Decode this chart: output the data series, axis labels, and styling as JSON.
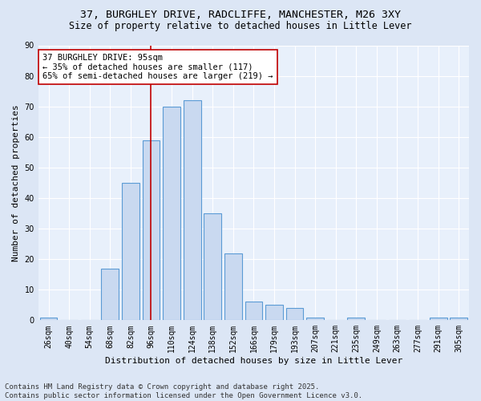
{
  "title1": "37, BURGHLEY DRIVE, RADCLIFFE, MANCHESTER, M26 3XY",
  "title2": "Size of property relative to detached houses in Little Lever",
  "xlabel": "Distribution of detached houses by size in Little Lever",
  "ylabel": "Number of detached properties",
  "bar_labels": [
    "26sqm",
    "40sqm",
    "54sqm",
    "68sqm",
    "82sqm",
    "96sqm",
    "110sqm",
    "124sqm",
    "138sqm",
    "152sqm",
    "166sqm",
    "179sqm",
    "193sqm",
    "207sqm",
    "221sqm",
    "235sqm",
    "249sqm",
    "263sqm",
    "277sqm",
    "291sqm",
    "305sqm"
  ],
  "bar_values": [
    1,
    0,
    0,
    17,
    45,
    59,
    70,
    72,
    35,
    22,
    6,
    5,
    4,
    1,
    0,
    1,
    0,
    0,
    0,
    1,
    1
  ],
  "bar_color": "#c9d9f0",
  "bar_edgecolor": "#5b9bd5",
  "vline_x": 5.0,
  "vline_color": "#c00000",
  "annotation_text": "37 BURGHLEY DRIVE: 95sqm\n← 35% of detached houses are smaller (117)\n65% of semi-detached houses are larger (219) →",
  "annotation_box_color": "#ffffff",
  "annotation_box_edgecolor": "#c00000",
  "ylim": [
    0,
    90
  ],
  "yticks": [
    0,
    10,
    20,
    30,
    40,
    50,
    60,
    70,
    80,
    90
  ],
  "footer": "Contains HM Land Registry data © Crown copyright and database right 2025.\nContains public sector information licensed under the Open Government Licence v3.0.",
  "bg_color": "#dce6f5",
  "plot_bg_color": "#e8f0fb",
  "grid_color": "#ffffff",
  "title_fontsize": 9.5,
  "subtitle_fontsize": 8.5,
  "axis_label_fontsize": 8,
  "tick_fontsize": 7,
  "annotation_fontsize": 7.5,
  "footer_fontsize": 6.5
}
